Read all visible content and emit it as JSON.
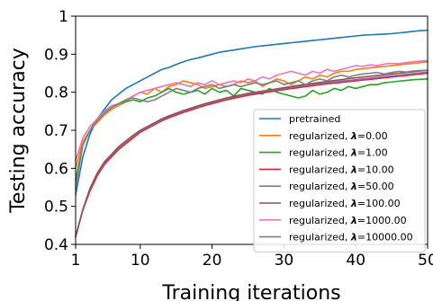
{
  "chart_data": {
    "type": "line",
    "xlabel": "Training iterations",
    "ylabel": "Testing accuracy",
    "xlim": [
      1,
      50
    ],
    "ylim": [
      0.4,
      1.0
    ],
    "xticks": [
      1,
      10,
      20,
      30,
      40,
      50
    ],
    "yticks": [
      0.4,
      0.5,
      0.6,
      0.7,
      0.8,
      0.9,
      1.0
    ],
    "ytick_labels": [
      "0.4",
      "0.5",
      "0.6",
      "0.7",
      "0.8",
      "0.9",
      "1"
    ],
    "grid": false,
    "legend_position": "lower-right",
    "x": [
      1,
      2,
      3,
      4,
      5,
      6,
      7,
      8,
      9,
      10,
      11,
      12,
      13,
      14,
      15,
      16,
      17,
      18,
      19,
      20,
      21,
      22,
      23,
      24,
      25,
      26,
      27,
      28,
      29,
      30,
      31,
      32,
      33,
      34,
      35,
      36,
      37,
      38,
      39,
      40,
      41,
      42,
      43,
      44,
      45,
      46,
      47,
      48,
      49,
      50
    ],
    "series": [
      {
        "name": "pretrained",
        "legend_prefix": "pretrained",
        "legend_value": "",
        "color": "#1f77b4",
        "values": [
          0.53,
          0.63,
          0.69,
          0.73,
          0.755,
          0.78,
          0.795,
          0.81,
          0.82,
          0.83,
          0.84,
          0.85,
          0.86,
          0.865,
          0.873,
          0.88,
          0.886,
          0.89,
          0.895,
          0.9,
          0.905,
          0.908,
          0.911,
          0.914,
          0.917,
          0.92,
          0.922,
          0.924,
          0.926,
          0.928,
          0.93,
          0.932,
          0.934,
          0.936,
          0.938,
          0.94,
          0.942,
          0.944,
          0.946,
          0.948,
          0.95,
          0.951,
          0.952,
          0.953,
          0.954,
          0.956,
          0.958,
          0.96,
          0.962,
          0.963
        ]
      },
      {
        "name": "regularized, λ=0.00",
        "legend_prefix": "regularized, ",
        "legend_value": "=0.00",
        "color": "#ff7f0e",
        "values": [
          0.6,
          0.67,
          0.7,
          0.72,
          0.74,
          0.755,
          0.765,
          0.775,
          0.79,
          0.8,
          0.795,
          0.81,
          0.8,
          0.815,
          0.82,
          0.83,
          0.825,
          0.82,
          0.81,
          0.815,
          0.82,
          0.815,
          0.82,
          0.83,
          0.825,
          0.83,
          0.815,
          0.825,
          0.835,
          0.83,
          0.82,
          0.83,
          0.84,
          0.835,
          0.845,
          0.84,
          0.85,
          0.855,
          0.855,
          0.86,
          0.862,
          0.864,
          0.866,
          0.868,
          0.87,
          0.872,
          0.874,
          0.876,
          0.878,
          0.88
        ]
      },
      {
        "name": "regularized, λ=1.00",
        "legend_prefix": "regularized, ",
        "legend_value": "=1.00",
        "color": "#2ca02c",
        "values": [
          0.57,
          0.66,
          0.7,
          0.73,
          0.745,
          0.76,
          0.77,
          0.775,
          0.78,
          0.775,
          0.785,
          0.79,
          0.8,
          0.81,
          0.8,
          0.795,
          0.8,
          0.805,
          0.795,
          0.81,
          0.8,
          0.805,
          0.79,
          0.81,
          0.805,
          0.8,
          0.795,
          0.81,
          0.8,
          0.795,
          0.79,
          0.785,
          0.79,
          0.805,
          0.795,
          0.8,
          0.81,
          0.805,
          0.815,
          0.81,
          0.815,
          0.82,
          0.82,
          0.825,
          0.827,
          0.829,
          0.831,
          0.833,
          0.834,
          0.835
        ]
      },
      {
        "name": "regularized, λ=10.00",
        "legend_prefix": "regularized, ",
        "legend_value": "=10.00",
        "color": "#d62728",
        "values": [
          0.42,
          0.49,
          0.54,
          0.58,
          0.61,
          0.63,
          0.65,
          0.665,
          0.68,
          0.695,
          0.705,
          0.715,
          0.725,
          0.733,
          0.74,
          0.747,
          0.753,
          0.759,
          0.765,
          0.77,
          0.775,
          0.78,
          0.784,
          0.788,
          0.792,
          0.795,
          0.798,
          0.801,
          0.804,
          0.807,
          0.81,
          0.812,
          0.815,
          0.817,
          0.82,
          0.822,
          0.824,
          0.826,
          0.828,
          0.83,
          0.832,
          0.834,
          0.836,
          0.838,
          0.84,
          0.842,
          0.844,
          0.846,
          0.848,
          0.85
        ]
      },
      {
        "name": "regularized, λ=50.00",
        "legend_prefix": "regularized, ",
        "legend_value": "=50.00",
        "color": "#9467bd",
        "values": [
          0.42,
          0.49,
          0.545,
          0.585,
          0.615,
          0.635,
          0.655,
          0.67,
          0.685,
          0.698,
          0.708,
          0.718,
          0.728,
          0.736,
          0.743,
          0.75,
          0.756,
          0.762,
          0.768,
          0.773,
          0.778,
          0.783,
          0.787,
          0.791,
          0.795,
          0.798,
          0.801,
          0.804,
          0.807,
          0.81,
          0.813,
          0.815,
          0.818,
          0.82,
          0.823,
          0.825,
          0.827,
          0.829,
          0.831,
          0.833,
          0.835,
          0.837,
          0.839,
          0.841,
          0.843,
          0.845,
          0.847,
          0.849,
          0.851,
          0.853
        ]
      },
      {
        "name": "regularized, λ=100.00",
        "legend_prefix": "regularized, ",
        "legend_value": "=100.00",
        "color": "#8c564b",
        "values": [
          0.42,
          0.492,
          0.547,
          0.587,
          0.617,
          0.637,
          0.657,
          0.672,
          0.687,
          0.7,
          0.71,
          0.72,
          0.73,
          0.738,
          0.745,
          0.752,
          0.758,
          0.764,
          0.77,
          0.775,
          0.78,
          0.785,
          0.789,
          0.793,
          0.797,
          0.8,
          0.803,
          0.806,
          0.809,
          0.812,
          0.815,
          0.818,
          0.82,
          0.823,
          0.826,
          0.828,
          0.831,
          0.833,
          0.836,
          0.838,
          0.84,
          0.842,
          0.844,
          0.846,
          0.848,
          0.85,
          0.852,
          0.854,
          0.856,
          0.858
        ]
      },
      {
        "name": "regularized, λ=1000.00",
        "legend_prefix": "regularized, ",
        "legend_value": "=1000.00",
        "color": "#e377c2",
        "values": [
          0.62,
          0.68,
          0.71,
          0.73,
          0.75,
          0.765,
          0.77,
          0.78,
          0.79,
          0.8,
          0.805,
          0.81,
          0.815,
          0.82,
          0.825,
          0.82,
          0.815,
          0.825,
          0.82,
          0.83,
          0.82,
          0.825,
          0.83,
          0.825,
          0.835,
          0.83,
          0.84,
          0.835,
          0.845,
          0.85,
          0.855,
          0.85,
          0.845,
          0.855,
          0.85,
          0.86,
          0.855,
          0.86,
          0.865,
          0.87,
          0.868,
          0.872,
          0.87,
          0.874,
          0.876,
          0.875,
          0.878,
          0.88,
          0.882,
          0.883
        ]
      },
      {
        "name": "regularized, λ=10000.00",
        "legend_prefix": "regularized, ",
        "legend_value": "=10000.00",
        "color": "#7f7f7f",
        "values": [
          0.55,
          0.66,
          0.7,
          0.725,
          0.745,
          0.76,
          0.77,
          0.78,
          0.785,
          0.78,
          0.775,
          0.78,
          0.79,
          0.8,
          0.81,
          0.805,
          0.8,
          0.81,
          0.815,
          0.82,
          0.81,
          0.815,
          0.82,
          0.815,
          0.82,
          0.825,
          0.82,
          0.825,
          0.83,
          0.82,
          0.825,
          0.83,
          0.82,
          0.83,
          0.835,
          0.83,
          0.84,
          0.845,
          0.84,
          0.845,
          0.848,
          0.85,
          0.852,
          0.848,
          0.852,
          0.855,
          0.853,
          0.856,
          0.857,
          0.858
        ]
      }
    ]
  }
}
